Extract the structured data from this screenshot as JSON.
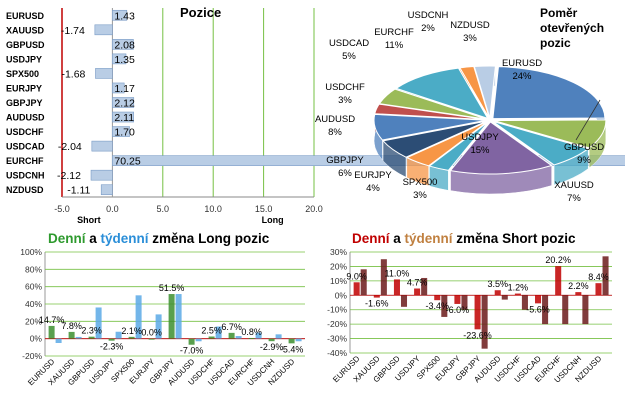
{
  "chart_data": [
    {
      "type": "bar",
      "orientation": "horizontal",
      "title": "Pozice",
      "categories": [
        "EURUSD",
        "XAUUSD",
        "GBPUSD",
        "USDJPY",
        "SPX500",
        "EURJPY",
        "GBPJPY",
        "AUDUSD",
        "USDCHF",
        "USDCAD",
        "EURCHF",
        "USDCNH",
        "NZDUSD"
      ],
      "values": [
        1.43,
        -1.74,
        2.08,
        1.35,
        -1.68,
        1.17,
        2.12,
        2.11,
        1.7,
        -2.04,
        70.25,
        -2.12,
        -1.11
      ],
      "value_labels": [
        "1.43",
        "-1.74",
        "2.08",
        "1.35",
        "-1.68",
        "1.17",
        "2.12",
        "2.11",
        "1.70",
        "-2.04",
        "70.25",
        "-2.12",
        "-1.11"
      ],
      "xlim": [
        -5,
        20
      ],
      "xticks": [
        "-5.0",
        "0.0",
        "5.0",
        "10.0",
        "15.0",
        "20.0"
      ],
      "short_label": "Short",
      "long_label": "Long",
      "grid": "vertical"
    },
    {
      "type": "pie",
      "title": "Poměr otevřených pozic",
      "slices": [
        {
          "name": "EURUSD",
          "value": 24,
          "label": "24%",
          "color": "#4f81bd"
        },
        {
          "name": "GBPUSD",
          "value": 9,
          "label": "9%",
          "color": "#9bbb59"
        },
        {
          "name": "XAUUSD",
          "value": 7,
          "label": "7%",
          "color": "#4bacc6"
        },
        {
          "name": "USDJPY",
          "value": 15,
          "label": "15%",
          "color": "#8064a2"
        },
        {
          "name": "SPX500",
          "value": 3,
          "label": "3%",
          "color": "#4bacc6"
        },
        {
          "name": "EURJPY",
          "value": 4,
          "label": "4%",
          "color": "#f79646"
        },
        {
          "name": "GBPJPY",
          "value": 6,
          "label": "6%",
          "color": "#2c4d75"
        },
        {
          "name": "AUDUSD",
          "value": 8,
          "label": "8%",
          "color": "#4f81bd"
        },
        {
          "name": "USDCHF",
          "value": 3,
          "label": "3%",
          "color": "#c0504d"
        },
        {
          "name": "USDCAD",
          "value": 5,
          "label": "5%",
          "color": "#9bbb59"
        },
        {
          "name": "EURCHF",
          "value": 11,
          "label": "11%",
          "color": "#4bacc6"
        },
        {
          "name": "USDCNH",
          "value": 2,
          "label": "2%",
          "color": "#f79646"
        },
        {
          "name": "NZDUSD",
          "value": 3,
          "label": "3%",
          "color": "#b9cde5"
        }
      ]
    },
    {
      "type": "bar",
      "title_parts": [
        "Denní",
        " a ",
        "týdenní",
        " změna Long pozic"
      ],
      "categories": [
        "EURUSD",
        "XAUUSD",
        "GBPUSD",
        "USDJPY",
        "SPX500",
        "EURJPY",
        "GBPJPY",
        "AUDUSD",
        "USDCHF",
        "USDCAD",
        "EURCHF",
        "USDCNH",
        "NZDUSD"
      ],
      "series": [
        {
          "values": [
            14.7,
            7.8,
            2.3,
            -2.3,
            2.1,
            0.0,
            51.5,
            -7.0,
            2.5,
            6.7,
            0.8,
            -2.9,
            -5.4
          ],
          "color": "#3c8f2f"
        },
        {
          "values": [
            -5.0,
            2.0,
            36.0,
            8.0,
            50.0,
            28.0,
            51.5,
            -3.0,
            14.0,
            3.0,
            7.0,
            5.0,
            -3.0
          ],
          "color": "#5aa9e6"
        }
      ],
      "data_labels": [
        "14.7%",
        "7.8%",
        "2.3%",
        "-2.3%",
        "2.1%",
        "0.0%",
        "51.5%",
        "-7.0%",
        "2.5%",
        "6.7%",
        "0.8%",
        "-2.9%",
        "-5.4%"
      ],
      "ylim": [
        -20,
        100
      ],
      "yticks": [
        "-20%",
        "0%",
        "20%",
        "40%",
        "60%",
        "80%",
        "100%"
      ]
    },
    {
      "type": "bar",
      "title_parts": [
        "Denní",
        " a ",
        "týdenní",
        " změna Short pozic"
      ],
      "categories": [
        "EURUSD",
        "XAUUSD",
        "GBPUSD",
        "USDJPY",
        "SPX500",
        "EURJPY",
        "GBPJPY",
        "AUDUSD",
        "USDCHF",
        "USDCAD",
        "EURCHF",
        "USDCNH",
        "NZDUSD"
      ],
      "series": [
        {
          "values": [
            9.0,
            -1.6,
            11.0,
            4.7,
            -3.4,
            -6.0,
            -23.6,
            3.5,
            1.2,
            -5.6,
            20.2,
            2.2,
            8.4
          ],
          "color": "#c00000"
        },
        {
          "values": [
            18.0,
            25.0,
            -8.0,
            12.0,
            -15.0,
            -10.0,
            -37.0,
            -3.0,
            -10.0,
            -20.0,
            -20.0,
            -20.0,
            27.0
          ],
          "color": "#6b1a1a"
        }
      ],
      "data_labels": [
        "9.0%",
        "-1.6%",
        "11.0%",
        "4.7%",
        "-3.4%",
        "-6.0%",
        "-23.6%",
        "3.5%",
        "1.2%",
        "-5.6%",
        "20.2%",
        "2.2%",
        "8.4%"
      ],
      "ylim": [
        -40,
        30
      ],
      "yticks": [
        "-40%",
        "-30%",
        "-20%",
        "-10%",
        "0%",
        "10%",
        "20%",
        "30%"
      ]
    }
  ],
  "colors": {
    "title_green": "#2e9a2e",
    "title_blue": "#2a8ed8",
    "title_red": "#c00000",
    "title_orange": "#c08040",
    "accent_line": "#c00000",
    "grid_green": "#76c043"
  }
}
